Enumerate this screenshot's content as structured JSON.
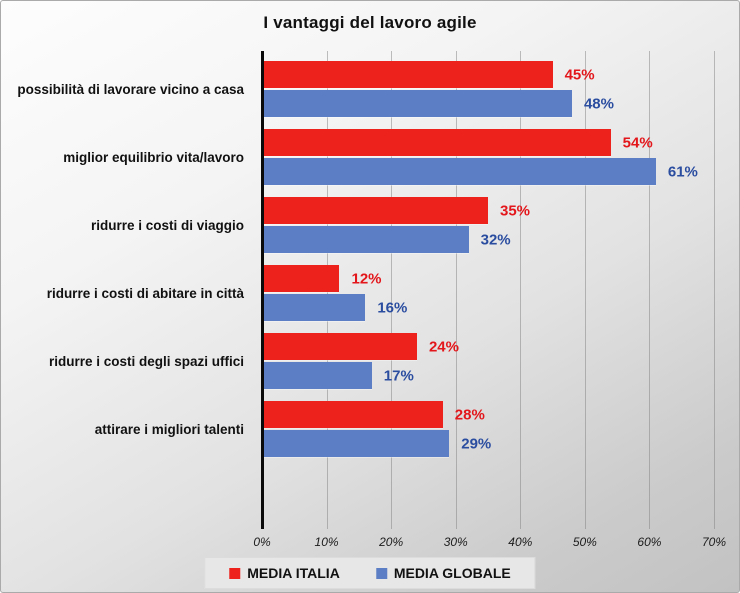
{
  "chart_data": {
    "type": "bar",
    "orientation": "horizontal",
    "title": "I vantaggi del lavoro agile",
    "categories": [
      "possibilità di lavorare vicino a casa",
      "miglior equilibrio vita/lavoro",
      "ridurre i costi di viaggio",
      "ridurre i costi di abitare in città",
      "ridurre i costi degli spazi uffici",
      "attirare i migliori talenti"
    ],
    "series": [
      {
        "name": "MEDIA ITALIA",
        "color": "#ee221c",
        "label_color": "#e3161b",
        "values": [
          45,
          54,
          35,
          12,
          24,
          28
        ]
      },
      {
        "name": "MEDIA GLOBALE",
        "color": "#5c7ec4",
        "label_color": "#2b4da0",
        "values": [
          48,
          61,
          32,
          16,
          17,
          29
        ]
      }
    ],
    "value_suffix": "%",
    "x_ticks": [
      "0%",
      "10%",
      "20%",
      "30%",
      "40%",
      "50%",
      "60%",
      "70%"
    ],
    "xlim": [
      0,
      70
    ],
    "grid": true,
    "legend_position": "bottom",
    "background": "gray-gradient",
    "axis_color": "#0a0a0a"
  }
}
